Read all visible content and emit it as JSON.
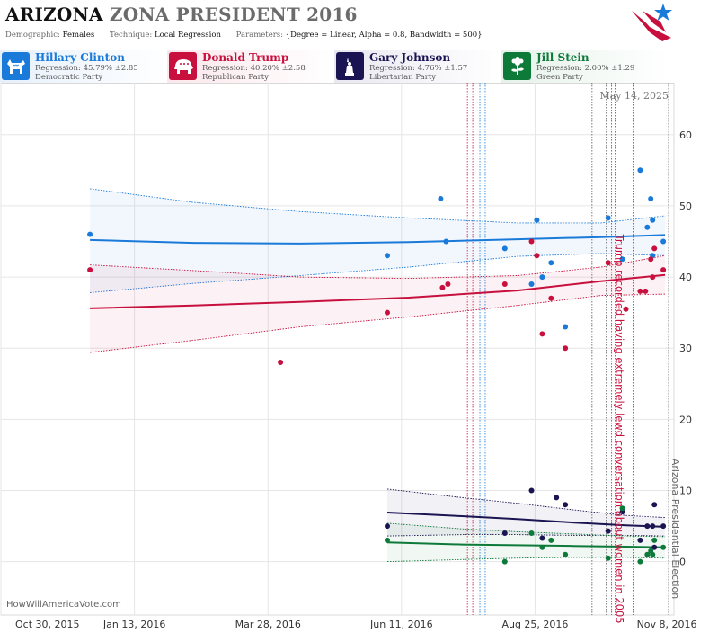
{
  "header": {
    "title_state": "ARIZONA",
    "title_rest": "ZONA PRESIDENT 2016",
    "params": [
      {
        "label": "Demographic:",
        "value": "Females"
      },
      {
        "label": "Technique:",
        "value": "Local Regression"
      },
      {
        "label": "Parameters:",
        "value": "{Degree = Linear, Alpha = 0.8, Bandwidth = 500}"
      }
    ]
  },
  "candidates": [
    {
      "name": "Hillary Clinton",
      "regression": "Regression: 45.79% ±2.85",
      "party": "Democratic Party",
      "color": "#1a7ad9",
      "icon": "donkey-icon"
    },
    {
      "name": "Donald Trump",
      "regression": "Regression: 40.20% ±2.58",
      "party": "Republican Party",
      "color": "#c8103e",
      "icon": "elephant-icon"
    },
    {
      "name": "Gary Johnson",
      "regression": "Regression: 4.76% ±1.57",
      "party": "Libertarian Party",
      "color": "#1b1452",
      "icon": "liberty-icon"
    },
    {
      "name": "Jill Stein",
      "regression": "Regression: 2.00% ±1.29",
      "party": "Green Party",
      "color": "#0d7a3a",
      "icon": "flower-icon"
    }
  ],
  "date_stamp": "May 14, 2025",
  "watermark": "HowWillAmericaVote.com",
  "chart_data": {
    "type": "scatter",
    "x_tick_labels": [
      "Oct 30, 2015",
      "Jan 13, 2016",
      "Mar 28, 2016",
      "Jun 11, 2016",
      "Aug 25, 2016",
      "Nov 8, 2016"
    ],
    "x_ticks": [
      "2015-10-30",
      "2016-01-13",
      "2016-03-28",
      "2016-06-11",
      "2016-08-25",
      "2016-11-08"
    ],
    "xlim": [
      "2015-10-30",
      "2016-11-11"
    ],
    "y_ticks": [
      0,
      10,
      20,
      30,
      40,
      50,
      60
    ],
    "ylim": [
      -7.5,
      67.3
    ],
    "grid": true,
    "annotations": [
      {
        "date": "2016-10-07",
        "text": "Trump recorded having extremely lewd conversation about women in 2005",
        "color": "#c8103e"
      },
      {
        "date": "2016-11-08",
        "text": "Arizona Presidential Election",
        "color": "#666666"
      }
    ],
    "event_lines": [
      {
        "date": "2016-07-18",
        "color": "#c8103e"
      },
      {
        "date": "2016-07-21",
        "color": "#c8103e"
      },
      {
        "date": "2016-07-25",
        "color": "#1a7ad9"
      },
      {
        "date": "2016-07-28",
        "color": "#1a7ad9"
      },
      {
        "date": "2016-09-26",
        "color": "#555555"
      },
      {
        "date": "2016-10-04",
        "color": "#555555"
      },
      {
        "date": "2016-10-07",
        "color": "#c8103e"
      },
      {
        "date": "2016-10-09",
        "color": "#555555"
      },
      {
        "date": "2016-10-19",
        "color": "#555555"
      },
      {
        "date": "2016-11-08",
        "color": "#555555"
      }
    ],
    "series": [
      {
        "name": "Hillary Clinton",
        "color": "#1a7ad9",
        "points": [
          [
            "2015-12-19",
            46
          ],
          [
            "2016-06-03",
            43
          ],
          [
            "2016-07-03",
            51
          ],
          [
            "2016-07-06",
            45
          ],
          [
            "2016-08-08",
            44
          ],
          [
            "2016-08-23",
            39
          ],
          [
            "2016-08-26",
            48
          ],
          [
            "2016-08-29",
            40
          ],
          [
            "2016-09-03",
            42
          ],
          [
            "2016-09-11",
            33
          ],
          [
            "2016-10-05",
            48.3
          ],
          [
            "2016-10-13",
            42.5
          ],
          [
            "2016-10-23",
            55
          ],
          [
            "2016-10-27",
            47
          ],
          [
            "2016-10-29",
            51
          ],
          [
            "2016-10-30",
            48
          ],
          [
            "2016-10-30",
            43
          ],
          [
            "2016-11-05",
            45
          ]
        ],
        "trend": [
          [
            "2015-12-19",
            45.2
          ],
          [
            "2016-02-15",
            44.8
          ],
          [
            "2016-04-15",
            44.7
          ],
          [
            "2016-06-15",
            44.9
          ],
          [
            "2016-08-15",
            45.3
          ],
          [
            "2016-10-01",
            45.6
          ],
          [
            "2016-11-06",
            45.9
          ]
        ],
        "upper": [
          [
            "2015-12-19",
            52.4
          ],
          [
            "2016-02-15",
            50.5
          ],
          [
            "2016-04-15",
            49.2
          ],
          [
            "2016-06-15",
            48.3
          ],
          [
            "2016-08-15",
            47.6
          ],
          [
            "2016-10-01",
            47.6
          ],
          [
            "2016-11-06",
            48.6
          ]
        ],
        "lower": [
          [
            "2015-12-19",
            37.8
          ],
          [
            "2016-02-15",
            39.1
          ],
          [
            "2016-04-15",
            40.2
          ],
          [
            "2016-06-15",
            41.4
          ],
          [
            "2016-08-15",
            42.9
          ],
          [
            "2016-10-01",
            43.3
          ],
          [
            "2016-11-06",
            43.0
          ]
        ]
      },
      {
        "name": "Donald Trump",
        "color": "#c8103e",
        "points": [
          [
            "2015-12-19",
            41
          ],
          [
            "2016-04-04",
            28
          ],
          [
            "2016-06-03",
            35
          ],
          [
            "2016-07-04",
            38.5
          ],
          [
            "2016-07-07",
            39
          ],
          [
            "2016-08-08",
            39
          ],
          [
            "2016-08-23",
            45
          ],
          [
            "2016-08-26",
            43
          ],
          [
            "2016-08-29",
            32
          ],
          [
            "2016-09-03",
            37
          ],
          [
            "2016-09-11",
            30
          ],
          [
            "2016-10-05",
            42
          ],
          [
            "2016-10-15",
            35.5
          ],
          [
            "2016-10-23",
            38
          ],
          [
            "2016-10-26",
            38
          ],
          [
            "2016-10-29",
            42.5
          ],
          [
            "2016-10-30",
            40
          ],
          [
            "2016-10-31",
            44
          ],
          [
            "2016-11-05",
            41
          ]
        ],
        "trend": [
          [
            "2015-12-19",
            35.6
          ],
          [
            "2016-02-15",
            36.0
          ],
          [
            "2016-04-15",
            36.5
          ],
          [
            "2016-06-15",
            37.1
          ],
          [
            "2016-08-15",
            38.1
          ],
          [
            "2016-10-01",
            39.4
          ],
          [
            "2016-11-06",
            40.3
          ]
        ],
        "upper": [
          [
            "2015-12-19",
            41.7
          ],
          [
            "2016-02-15",
            40.9
          ],
          [
            "2016-04-15",
            40.0
          ],
          [
            "2016-06-15",
            39.8
          ],
          [
            "2016-08-15",
            40.2
          ],
          [
            "2016-10-01",
            41.4
          ],
          [
            "2016-11-06",
            43.0
          ]
        ],
        "lower": [
          [
            "2015-12-19",
            29.4
          ],
          [
            "2016-02-15",
            31.1
          ],
          [
            "2016-04-15",
            33.0
          ],
          [
            "2016-06-15",
            34.4
          ],
          [
            "2016-08-15",
            36.0
          ],
          [
            "2016-10-01",
            37.4
          ],
          [
            "2016-11-06",
            37.6
          ]
        ]
      },
      {
        "name": "Gary Johnson",
        "color": "#1b1452",
        "points": [
          [
            "2016-06-03",
            5
          ],
          [
            "2016-08-08",
            4
          ],
          [
            "2016-08-23",
            10
          ],
          [
            "2016-08-29",
            3.3
          ],
          [
            "2016-09-06",
            9
          ],
          [
            "2016-09-11",
            8
          ],
          [
            "2016-10-05",
            4.3
          ],
          [
            "2016-10-13",
            7
          ],
          [
            "2016-10-23",
            3
          ],
          [
            "2016-10-27",
            5
          ],
          [
            "2016-10-30",
            5
          ],
          [
            "2016-10-31",
            8
          ],
          [
            "2016-10-31",
            2
          ],
          [
            "2016-11-05",
            5
          ]
        ],
        "trend": [
          [
            "2016-06-03",
            6.9
          ],
          [
            "2016-07-15",
            6.4
          ],
          [
            "2016-08-15",
            6.0
          ],
          [
            "2016-09-15",
            5.5
          ],
          [
            "2016-10-15",
            5.1
          ],
          [
            "2016-11-06",
            4.9
          ]
        ],
        "upper": [
          [
            "2016-06-03",
            10.2
          ],
          [
            "2016-07-15",
            9.0
          ],
          [
            "2016-08-15",
            8.2
          ],
          [
            "2016-09-15",
            7.3
          ],
          [
            "2016-10-15",
            6.5
          ],
          [
            "2016-11-06",
            6.2
          ]
        ],
        "lower": [
          [
            "2016-06-03",
            3.6
          ],
          [
            "2016-07-15",
            3.8
          ],
          [
            "2016-08-15",
            3.8
          ],
          [
            "2016-09-15",
            3.7
          ],
          [
            "2016-10-15",
            3.7
          ],
          [
            "2016-11-06",
            3.6
          ]
        ]
      },
      {
        "name": "Jill Stein",
        "color": "#0d7a3a",
        "points": [
          [
            "2016-06-03",
            3
          ],
          [
            "2016-08-08",
            0
          ],
          [
            "2016-08-23",
            4
          ],
          [
            "2016-08-29",
            2
          ],
          [
            "2016-09-03",
            3
          ],
          [
            "2016-09-11",
            1
          ],
          [
            "2016-10-05",
            0.5
          ],
          [
            "2016-10-13",
            7.5
          ],
          [
            "2016-10-23",
            0
          ],
          [
            "2016-10-27",
            1
          ],
          [
            "2016-10-29",
            1.5
          ],
          [
            "2016-10-30",
            1
          ],
          [
            "2016-10-31",
            3
          ],
          [
            "2016-11-05",
            2
          ]
        ],
        "trend": [
          [
            "2016-06-03",
            2.7
          ],
          [
            "2016-07-15",
            2.4
          ],
          [
            "2016-08-15",
            2.3
          ],
          [
            "2016-09-15",
            2.2
          ],
          [
            "2016-10-15",
            2.1
          ],
          [
            "2016-11-06",
            2.0
          ]
        ],
        "upper": [
          [
            "2016-06-03",
            5.4
          ],
          [
            "2016-07-15",
            4.6
          ],
          [
            "2016-08-15",
            4.2
          ],
          [
            "2016-09-15",
            3.9
          ],
          [
            "2016-10-15",
            3.6
          ],
          [
            "2016-11-06",
            3.5
          ]
        ],
        "lower": [
          [
            "2016-06-03",
            0.0
          ],
          [
            "2016-07-15",
            0.3
          ],
          [
            "2016-08-15",
            0.5
          ],
          [
            "2016-09-15",
            0.6
          ],
          [
            "2016-10-15",
            0.6
          ],
          [
            "2016-11-06",
            0.5
          ]
        ]
      }
    ]
  }
}
